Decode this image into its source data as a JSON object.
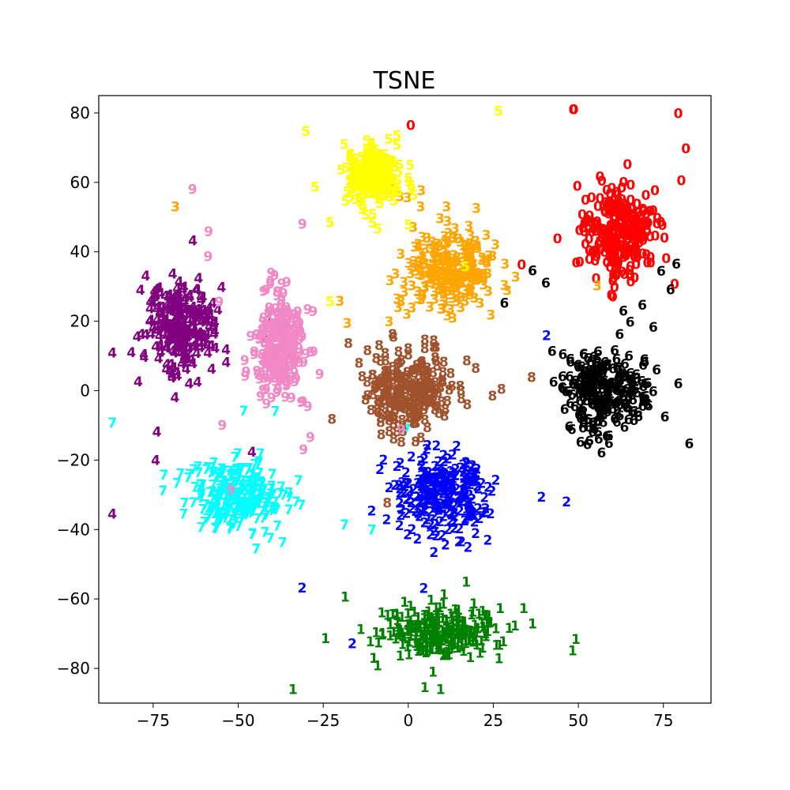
{
  "chart_data": {
    "type": "scatter",
    "title": "TSNE",
    "xlabel": "",
    "ylabel": "",
    "xlim": [
      -91,
      89
    ],
    "ylim": [
      -90,
      85
    ],
    "x_ticks": [
      -75,
      -50,
      -25,
      0,
      25,
      50,
      75
    ],
    "y_ticks": [
      -80,
      -60,
      -40,
      -20,
      0,
      20,
      40,
      60,
      80
    ],
    "x_tick_labels": [
      "−75",
      "−50",
      "−25",
      "0",
      "25",
      "50",
      "75"
    ],
    "y_tick_labels": [
      "−80",
      "−60",
      "−40",
      "−20",
      "0",
      "20",
      "40",
      "60",
      "80"
    ],
    "grid": false,
    "marker": "digit text labels",
    "series": [
      {
        "name": "0",
        "color": "#ff0000",
        "center": [
          62,
          46
        ],
        "spread": [
          8,
          12
        ]
      },
      {
        "name": "1",
        "color": "#008000",
        "center": [
          10,
          -70
        ],
        "spread": [
          14,
          6
        ]
      },
      {
        "name": "2",
        "color": "#0000ff",
        "center": [
          10,
          -30
        ],
        "spread": [
          11,
          10
        ]
      },
      {
        "name": "3",
        "color": "#ffa500",
        "center": [
          12,
          35
        ],
        "spread": [
          11,
          9
        ]
      },
      {
        "name": "4",
        "color": "#800080",
        "center": [
          -67,
          18
        ],
        "spread": [
          8,
          10
        ]
      },
      {
        "name": "5",
        "color": "#ffff00",
        "center": [
          -10,
          62
        ],
        "spread": [
          7,
          7
        ]
      },
      {
        "name": "6",
        "color": "#000000",
        "center": [
          58,
          0
        ],
        "spread": [
          10,
          10
        ]
      },
      {
        "name": "7",
        "color": "#00ffff",
        "center": [
          -50,
          -30
        ],
        "spread": [
          12,
          8
        ]
      },
      {
        "name": "8",
        "color": "#a0522d",
        "center": [
          0,
          0
        ],
        "spread": [
          10,
          9
        ]
      },
      {
        "name": "9",
        "color": "#f187c4",
        "center": [
          -38,
          12
        ],
        "spread": [
          6,
          14
        ]
      }
    ]
  }
}
